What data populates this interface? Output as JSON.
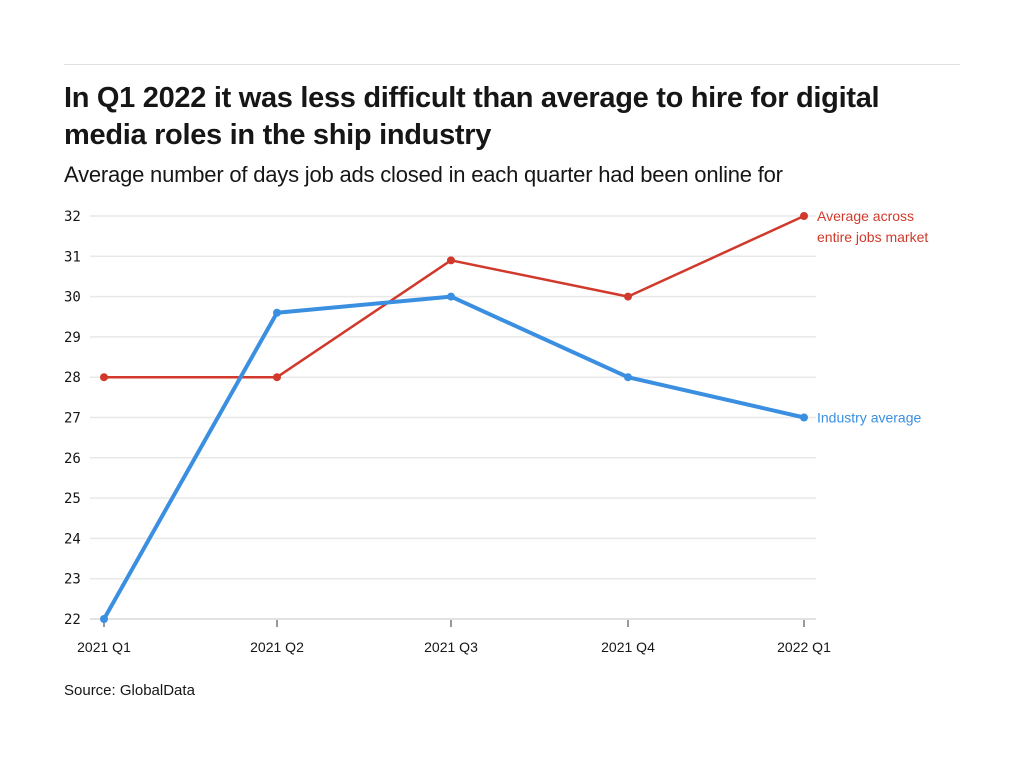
{
  "header": {
    "title": "In Q1 2022 it was less difficult than average to hire for digital media roles in the ship industry",
    "subtitle": "Average number of days job ads closed in each quarter had been online for"
  },
  "footer": {
    "source": "Source: GlobalData"
  },
  "chart_data": {
    "type": "line",
    "title": "In Q1 2022 it was less difficult than average to hire for digital media roles in the ship industry",
    "subtitle": "Average number of days job ads closed in each quarter had been online for",
    "xlabel": "",
    "ylabel": "",
    "categories": [
      "2021 Q1",
      "2021 Q2",
      "2021 Q3",
      "2021 Q4",
      "2022 Q1"
    ],
    "ylim": [
      22,
      32
    ],
    "yticks": [
      22,
      23,
      24,
      25,
      26,
      27,
      28,
      29,
      30,
      31,
      32
    ],
    "grid": true,
    "legend": "direct labels at line ends (right)",
    "series": [
      {
        "name": "Average across entire jobs market",
        "label_lines": [
          "Average across",
          "entire jobs market"
        ],
        "color": "#d0392b",
        "values": [
          28,
          28,
          30.9,
          30,
          32
        ]
      },
      {
        "name": "Industry average",
        "label_lines": [
          "Industry average"
        ],
        "color": "#3a8fe0",
        "values": [
          22,
          29.6,
          30,
          28,
          27
        ]
      }
    ],
    "source": "Source: GlobalData"
  }
}
